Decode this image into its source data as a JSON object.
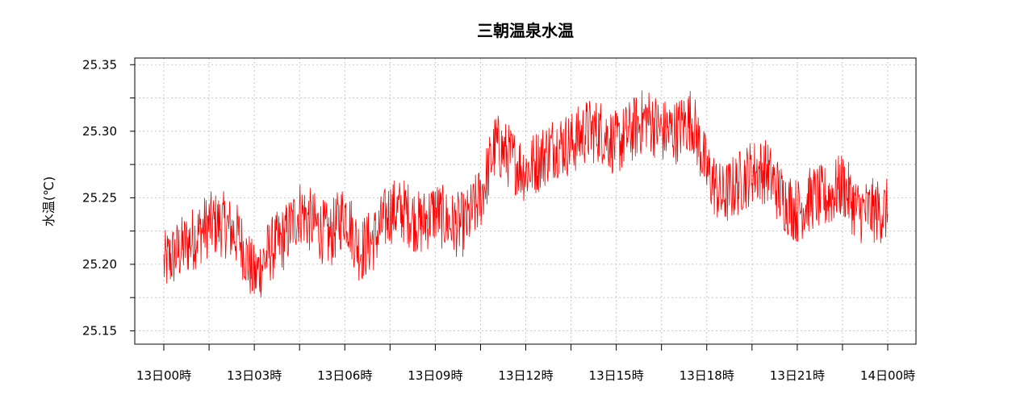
{
  "chart_data": {
    "type": "line",
    "title": "三朝温泉水温",
    "ylabel": "水温(℃)",
    "xlabel": "",
    "x_ticks": [
      "13日00時",
      "13日03時",
      "13日06時",
      "13日09時",
      "13日12時",
      "13日15時",
      "13日18時",
      "13日21時",
      "14日00時"
    ],
    "y_ticks": [
      "25.15",
      "25.20",
      "25.25",
      "25.30",
      "25.35"
    ],
    "x_range_hours": [
      0,
      24
    ],
    "ylim": [
      25.14,
      25.355
    ],
    "grid": true,
    "series": [
      {
        "color": "#ff0000",
        "x_hours": [
          0,
          0.5,
          1,
          1.5,
          2,
          2.5,
          3,
          3.5,
          4,
          4.5,
          5,
          5.5,
          6,
          6.5,
          7,
          7.5,
          8,
          8.5,
          9,
          9.5,
          10,
          10.5,
          11,
          11.5,
          12,
          12.5,
          13,
          13.5,
          14,
          14.5,
          15,
          15.5,
          16,
          16.5,
          17,
          17.5,
          18,
          18.5,
          19,
          19.5,
          20,
          20.5,
          21,
          21.5,
          22,
          22.5,
          23,
          23.5,
          24
        ],
        "values": [
          25.2,
          25.21,
          25.22,
          25.23,
          25.23,
          25.22,
          25.19,
          25.21,
          25.22,
          25.24,
          25.23,
          25.22,
          25.24,
          25.21,
          25.22,
          25.24,
          25.24,
          25.23,
          25.24,
          25.23,
          25.23,
          25.25,
          25.29,
          25.28,
          25.27,
          25.28,
          25.29,
          25.29,
          25.3,
          25.3,
          25.29,
          25.3,
          25.31,
          25.3,
          25.3,
          25.31,
          25.27,
          25.25,
          25.26,
          25.27,
          25.27,
          25.25,
          25.24,
          25.25,
          25.25,
          25.26,
          25.24,
          25.24,
          25.24
        ]
      }
    ]
  }
}
